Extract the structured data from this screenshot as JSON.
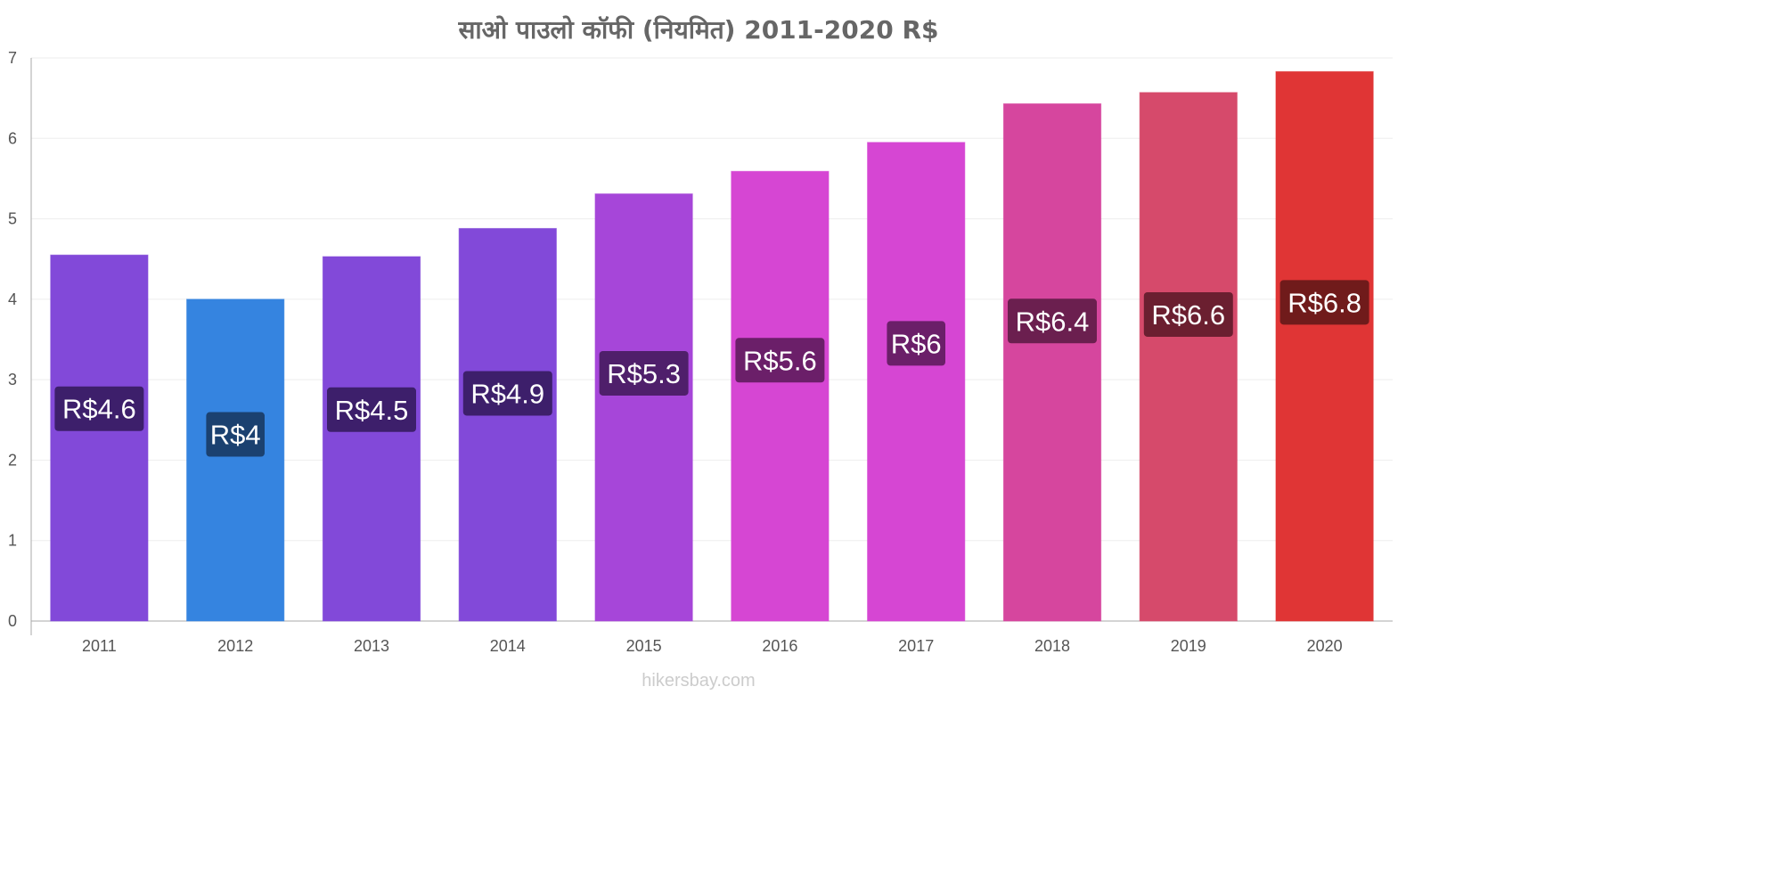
{
  "chart_data": {
    "type": "bar",
    "title": "साओ   पाउलो   कॉफी   (नियमित) 2011-2020 R$",
    "categories": [
      "2011",
      "2012",
      "2013",
      "2014",
      "2015",
      "2016",
      "2017",
      "2018",
      "2019",
      "2020"
    ],
    "values": [
      4.55,
      4.0,
      4.53,
      4.88,
      5.31,
      5.59,
      5.95,
      6.43,
      6.57,
      6.83
    ],
    "data_labels": [
      "R$4.6",
      "R$4",
      "R$4.5",
      "R$4.9",
      "R$5.3",
      "R$5.6",
      "R$6",
      "R$6.4",
      "R$6.6",
      "R$6.8"
    ],
    "colors": [
      "#8249d9",
      "#3584e0",
      "#8249d9",
      "#8249d9",
      "#a646d9",
      "#d646d3",
      "#d646d3",
      "#d6469e",
      "#d64a6b",
      "#e03535"
    ],
    "label_colors": [
      "#3d1f6b",
      "#1b4170",
      "#3d1f6b",
      "#3d1f6b",
      "#4f1f6b",
      "#6b1f69",
      "#6b1f69",
      "#6b1f4f",
      "#6b1f30",
      "#701b1b"
    ],
    "yticks": [
      "0",
      "1",
      "2",
      "3",
      "4",
      "5",
      "6",
      "7"
    ],
    "ylim": [
      0,
      7
    ],
    "xlabel": "",
    "ylabel": "",
    "grid": true
  },
  "footer": {
    "watermark": "hikersbay.com"
  }
}
